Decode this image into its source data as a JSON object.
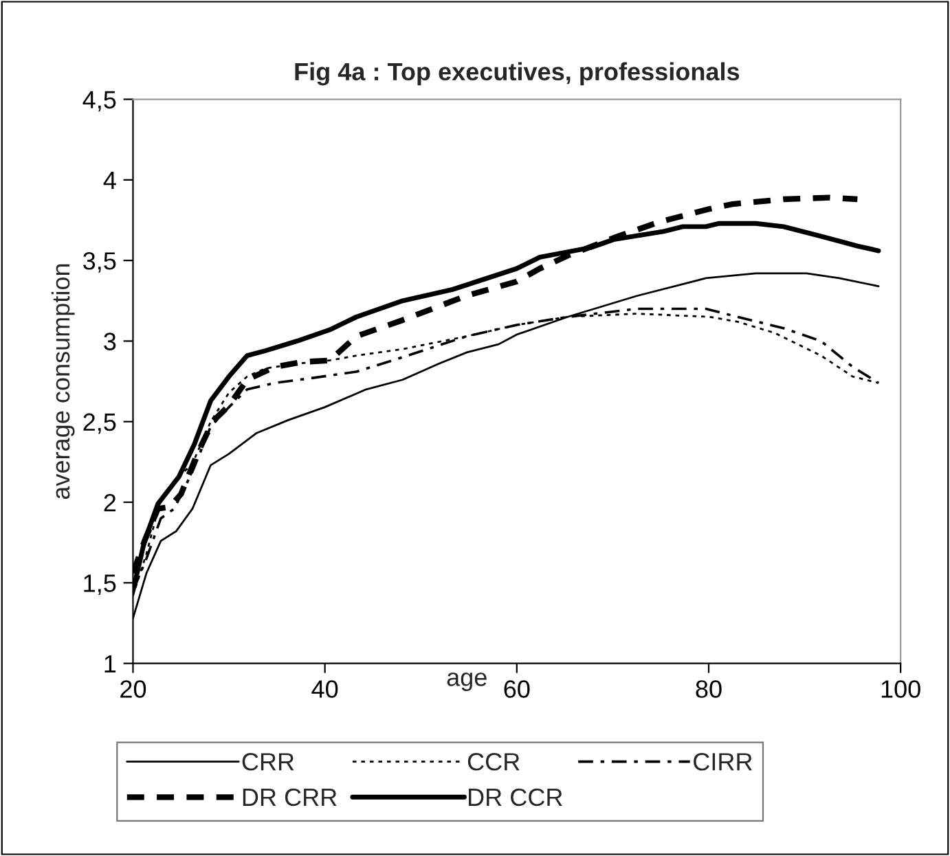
{
  "chart_data": {
    "type": "line",
    "title": "Fig 4a : Top executives, professionals",
    "xlabel": "age",
    "ylabel": "average consumption",
    "xlim": [
      20,
      100
    ],
    "xticks": [
      20,
      40,
      60,
      80,
      100
    ],
    "ylim": [
      1,
      4.5
    ],
    "yticks": [
      1,
      {
        "value": 1.5,
        "label": "1,5"
      },
      2,
      {
        "value": 2.5,
        "label": "2,5"
      },
      3,
      {
        "value": 3.5,
        "label": "3,5"
      },
      4,
      {
        "value": 4.5,
        "label": "4,5"
      }
    ],
    "grid": false,
    "legend": "bottom",
    "marker": "none",
    "series": [
      {
        "name": "CRR",
        "color": "#000000",
        "line_style": "solid",
        "x": [
          20,
          21.4,
          22.9,
          24.5,
          26.2,
          28.1,
          30,
          32.9,
          36.2,
          40,
          44.3,
          48.1,
          51.9,
          54.8,
          58.1,
          60,
          65.3,
          72.5,
          79.7,
          84.9,
          90.2,
          93.6,
          97.7
        ],
        "values": [
          1.28,
          1.56,
          1.76,
          1.82,
          1.96,
          2.23,
          2.3,
          2.43,
          2.51,
          2.59,
          2.7,
          2.76,
          2.86,
          2.93,
          2.98,
          3.04,
          3.15,
          3.28,
          3.39,
          3.42,
          3.42,
          3.39,
          3.34
        ]
      },
      {
        "name": "CCR",
        "color": "#000000",
        "line_style": "dotted",
        "x": [
          20,
          21.4,
          22.9,
          24.3,
          26.2,
          28.1,
          30,
          31.9,
          33.8,
          37.1,
          40.5,
          43.3,
          48.1,
          54.8,
          60,
          65.3,
          72.5,
          80.1,
          83,
          86.9,
          91.7,
          95,
          97.7
        ],
        "values": [
          1.42,
          1.68,
          2.02,
          2.13,
          2.24,
          2.5,
          2.68,
          2.78,
          2.83,
          2.86,
          2.88,
          2.91,
          2.95,
          3.03,
          3.1,
          3.15,
          3.17,
          3.15,
          3.12,
          3.05,
          2.91,
          2.78,
          2.74
        ]
      },
      {
        "name": "CIRR",
        "color": "#000000",
        "line_style": "dashdot",
        "x": [
          20,
          21.4,
          22.9,
          24.3,
          26.2,
          28.1,
          30,
          31.9,
          34.8,
          38.6,
          43.3,
          48.1,
          54.8,
          60,
          65.3,
          72.5,
          79.7,
          83,
          87.8,
          91.7,
          95,
          97.7
        ],
        "values": [
          1.45,
          1.65,
          1.9,
          1.96,
          2.19,
          2.47,
          2.59,
          2.7,
          2.74,
          2.77,
          2.81,
          2.9,
          3.03,
          3.1,
          3.15,
          3.2,
          3.2,
          3.15,
          3.08,
          3.0,
          2.84,
          2.74
        ]
      },
      {
        "name": "DR CRR",
        "color": "#000000",
        "line_style": "dashed",
        "x": [
          20,
          21.2,
          22.6,
          23.8,
          25,
          26.7,
          28.3,
          30,
          31.9,
          34.8,
          37.6,
          40.5,
          43.3,
          48.1,
          54.7,
          60,
          62.4,
          65.3,
          70.1,
          74.9,
          80.1,
          82.5,
          87.8,
          92.6,
          95.5
        ],
        "values": [
          1.56,
          1.76,
          1.96,
          1.97,
          2.05,
          2.3,
          2.5,
          2.6,
          2.76,
          2.84,
          2.87,
          2.88,
          3.03,
          3.13,
          3.28,
          3.37,
          3.45,
          3.53,
          3.64,
          3.74,
          3.82,
          3.85,
          3.88,
          3.89,
          3.88
        ]
      },
      {
        "name": "DR CCR",
        "color": "#000000",
        "line_style": "solid",
        "x": [
          20,
          21.2,
          22.6,
          24.8,
          26.4,
          28.1,
          30,
          31.9,
          33.8,
          37.1,
          40.5,
          43.3,
          48.1,
          53.3,
          60,
          62.4,
          67.7,
          70.1,
          75.3,
          77.3,
          79.7,
          81.1,
          84.9,
          87.8,
          91.7,
          95.5,
          97.7
        ],
        "values": [
          1.45,
          1.76,
          1.99,
          2.16,
          2.36,
          2.63,
          2.78,
          2.91,
          2.94,
          3.0,
          3.07,
          3.15,
          3.25,
          3.32,
          3.45,
          3.52,
          3.58,
          3.63,
          3.68,
          3.71,
          3.71,
          3.73,
          3.73,
          3.71,
          3.65,
          3.59,
          3.56
        ]
      }
    ]
  }
}
